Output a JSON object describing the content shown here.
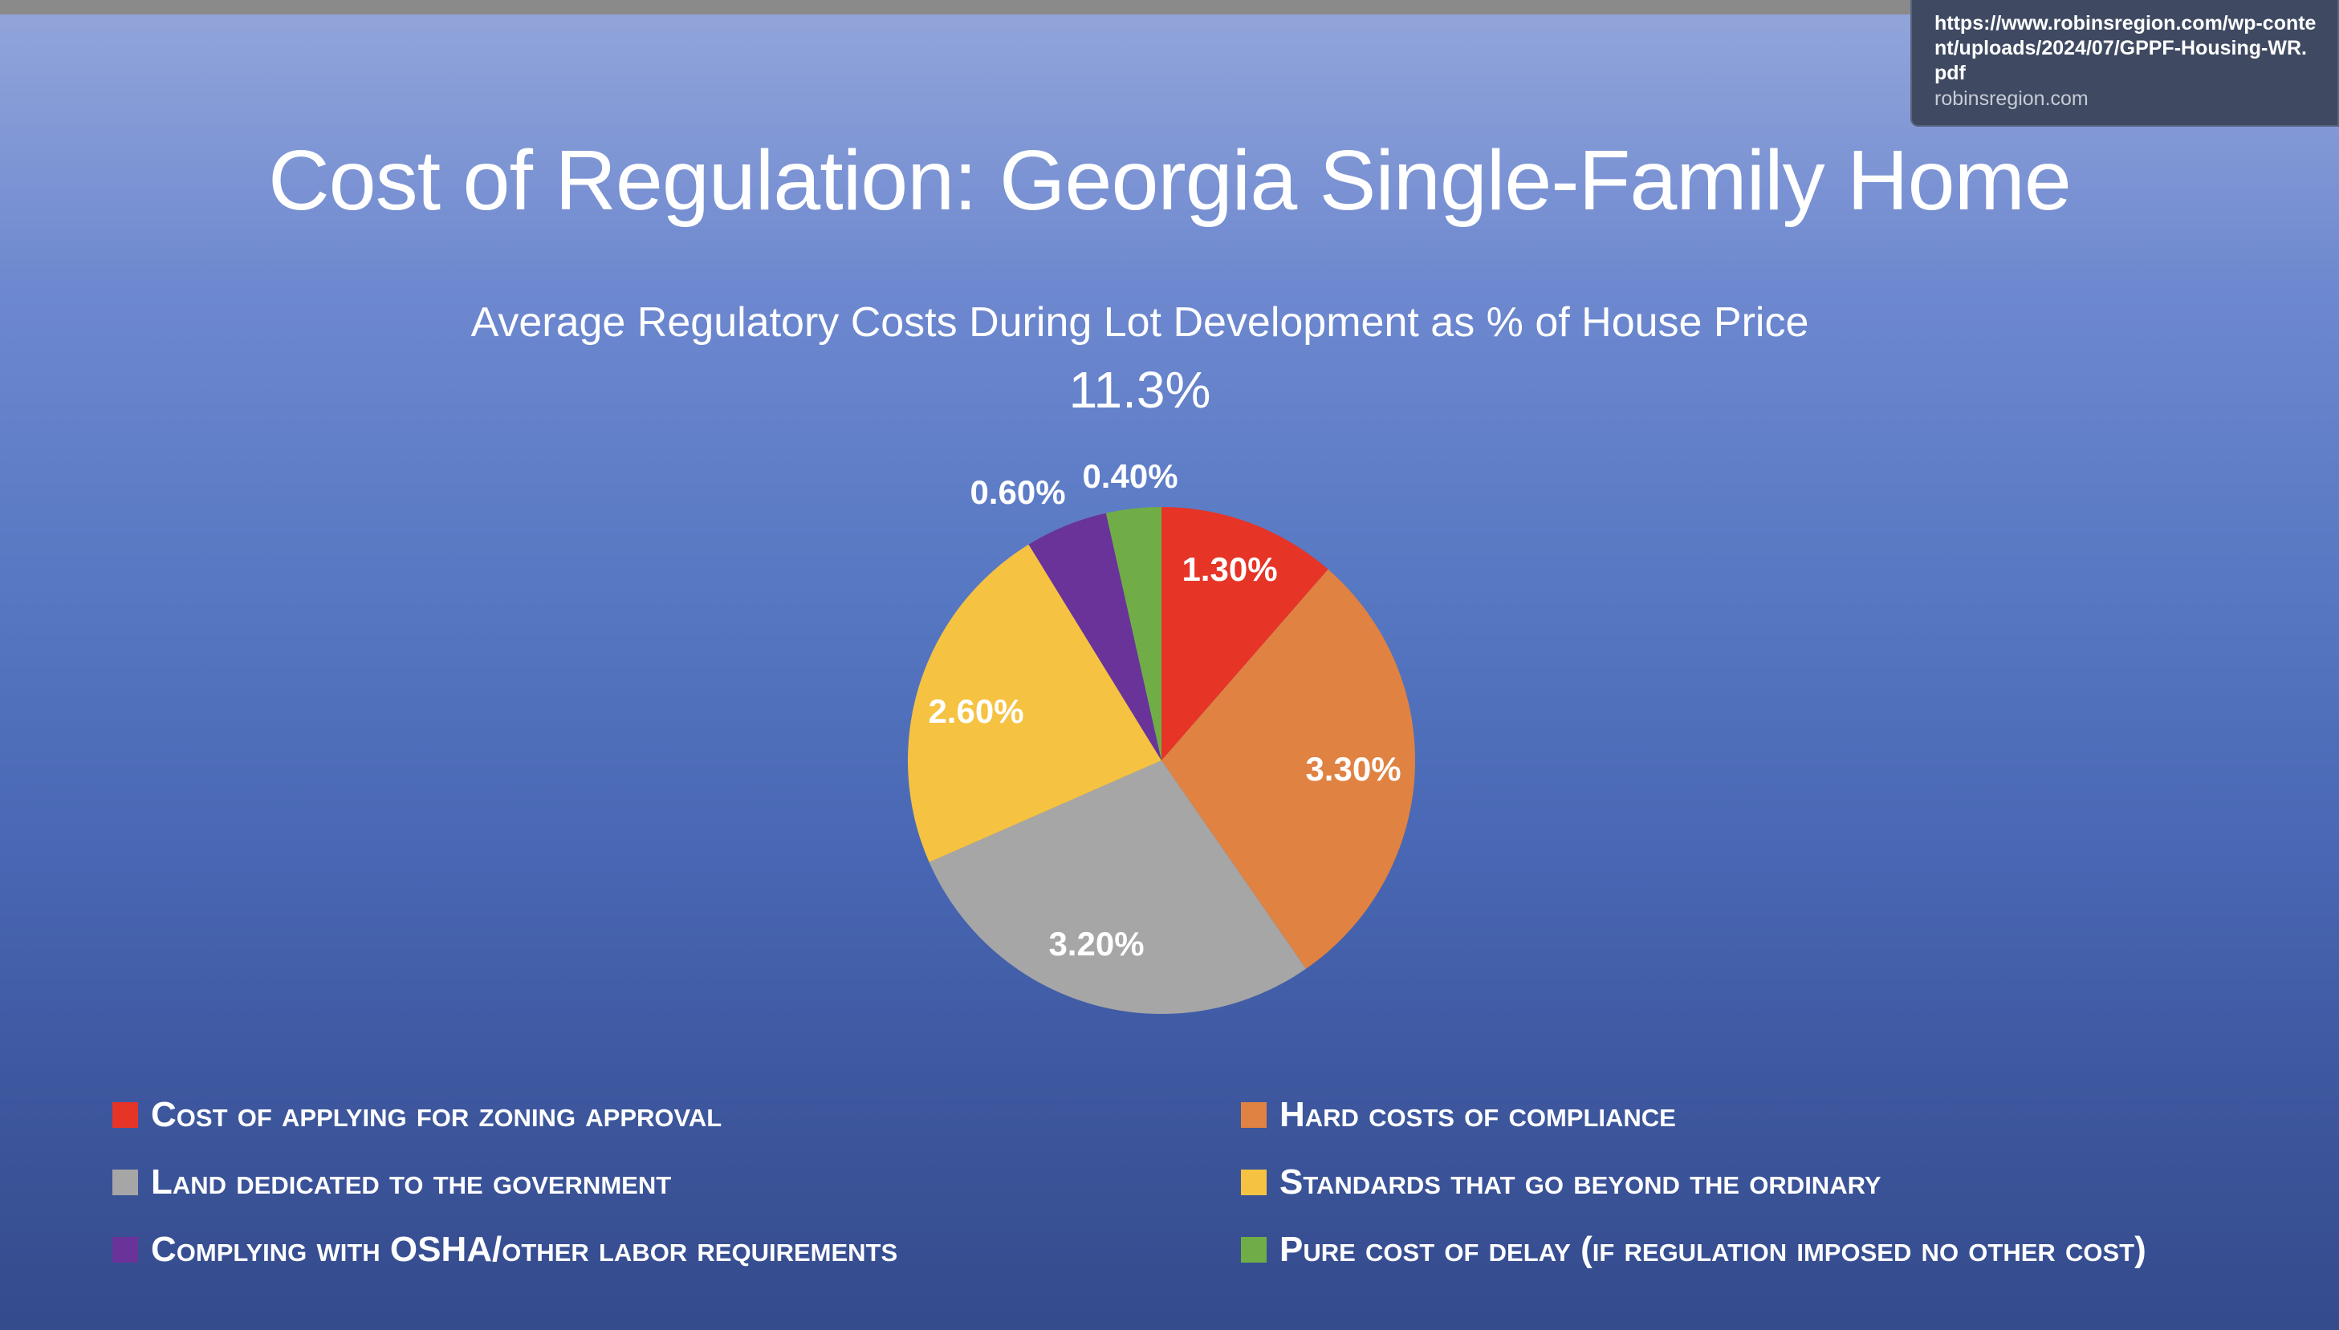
{
  "browser": {
    "link_tooltip": {
      "url": "https://www.robinsregion.com/wp-content/uploads/2024/07/GPPF-Housing-WR.pdf",
      "domain": "robinsregion.com"
    }
  },
  "slide": {
    "title": "Cost of Regulation: Georgia Single-Family Home"
  },
  "chart_data": {
    "type": "pie",
    "title": "Average Regulatory Costs During Lot Development as % of House Price",
    "subtitle": "11.3%",
    "legend_position": "bottom",
    "slices": [
      {
        "label": "Cost of applying for zoning approval",
        "value": 1.3,
        "value_label": "1.30%",
        "color": "#e63427"
      },
      {
        "label": "Hard costs of compliance",
        "value": 3.3,
        "value_label": "3.30%",
        "color": "#e08242"
      },
      {
        "label": "Land dedicated to the government",
        "value": 3.2,
        "value_label": "3.20%",
        "color": "#a6a6a6"
      },
      {
        "label": "Standards that go beyond the ordinary",
        "value": 2.6,
        "value_label": "2.60%",
        "color": "#f5c242"
      },
      {
        "label": "Complying with OSHA/other labor requirements",
        "value": 0.6,
        "value_label": "0.60%",
        "color": "#6a3399"
      },
      {
        "label": "Pure cost of delay (if regulation imposed no other cost)",
        "value": 0.4,
        "value_label": "0.40%",
        "color": "#70ad47"
      }
    ]
  }
}
